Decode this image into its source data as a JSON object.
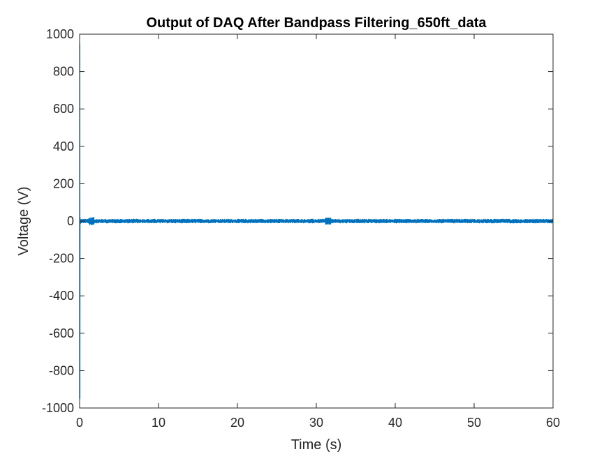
{
  "chart_data": {
    "type": "line",
    "title": "Output of DAQ After Bandpass Filtering_650ft_data",
    "xlabel": "Time (s)",
    "ylabel": "Voltage (V)",
    "xlim": [
      0,
      60
    ],
    "ylim": [
      -1000,
      1000
    ],
    "xticks": [
      0,
      10,
      20,
      30,
      40,
      50,
      60
    ],
    "yticks": [
      -1000,
      -800,
      -600,
      -400,
      -200,
      0,
      200,
      400,
      600,
      800,
      1000
    ],
    "xtick_labels": [
      "0",
      "10",
      "20",
      "30",
      "40",
      "50",
      "60"
    ],
    "ytick_labels": [
      "-1000",
      "-800",
      "-600",
      "-400",
      "-200",
      "0",
      "200",
      "400",
      "600",
      "800",
      "1000"
    ],
    "grid": false,
    "series": [
      {
        "color": "#0072BD",
        "x": [
          0,
          0.02,
          0.04,
          0.06,
          0.1,
          0.2,
          0.5,
          1.0,
          1.3,
          1.5,
          1.7,
          2.0,
          5,
          10,
          15,
          20,
          25,
          30,
          31.3,
          31.5,
          31.7,
          35,
          40,
          45,
          50,
          55,
          60
        ],
        "y": [
          0,
          950,
          -950,
          20,
          -15,
          12,
          -10,
          8,
          25,
          -22,
          12,
          8,
          -10,
          9,
          -8,
          10,
          -9,
          8,
          22,
          -20,
          10,
          -8,
          9,
          -8,
          9,
          -7,
          6
        ]
      }
    ],
    "noise_amplitude": 12,
    "bursts": [
      {
        "x": 1.5,
        "amplitude": 22
      },
      {
        "x": 31.5,
        "amplitude": 20
      }
    ]
  }
}
